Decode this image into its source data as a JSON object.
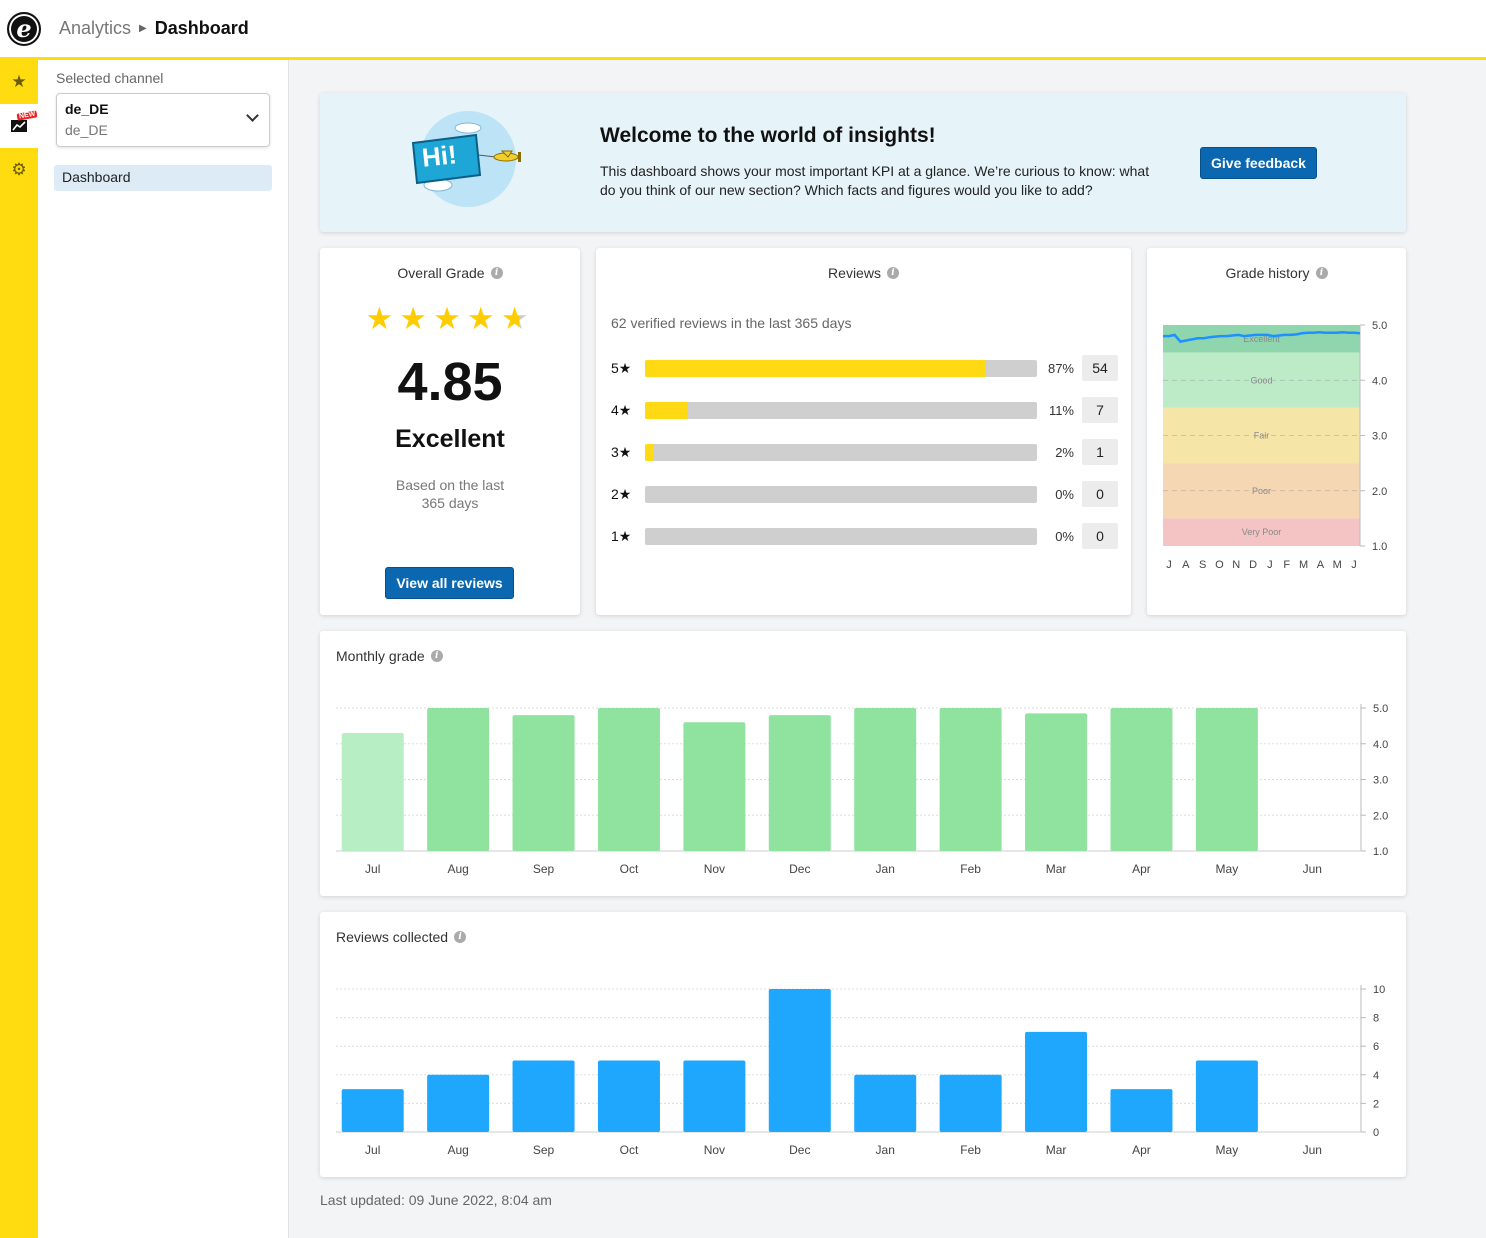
{
  "header": {
    "logo_letter": "e",
    "breadcrumb_parent": "Analytics",
    "breadcrumb_current": "Dashboard"
  },
  "rail": {
    "items": [
      {
        "icon": "star-icon"
      },
      {
        "icon": "chart-new-icon",
        "badge": "NEW"
      },
      {
        "icon": "gear-icon"
      }
    ]
  },
  "sidebar": {
    "selected_channel_label": "Selected channel",
    "channel_value": "de_DE",
    "channel_sub": "de_DE",
    "nav_items": [
      {
        "label": "Dashboard"
      }
    ]
  },
  "banner": {
    "title": "Welcome to the world of insights!",
    "text": "This dashboard shows your most important KPI at a glance. We’re curious to know: what do you think of our new section? Which facts and figures would you like to add?",
    "button": "Give feedback",
    "illustration_text": "Hi!"
  },
  "overall": {
    "title": "Overall Grade",
    "stars": 4.5,
    "grade": "4.85",
    "grade_word": "Excellent",
    "based_line1": "Based on the last",
    "based_line2": "365 days",
    "button": "View all reviews"
  },
  "reviews": {
    "title": "Reviews",
    "subtitle": "62 verified reviews in the last 365 days",
    "distribution": [
      {
        "label": "5★",
        "percent": 87,
        "pct_text": "87%",
        "count": "54"
      },
      {
        "label": "4★",
        "percent": 11,
        "pct_text": "11%",
        "count": "7"
      },
      {
        "label": "3★",
        "percent": 2,
        "pct_text": "2%",
        "count": "1"
      },
      {
        "label": "2★",
        "percent": 0,
        "pct_text": "0%",
        "count": "0"
      },
      {
        "label": "1★",
        "percent": 0,
        "pct_text": "0%",
        "count": "0"
      }
    ]
  },
  "history": {
    "title": "Grade history",
    "bands": [
      {
        "name": "Excellent",
        "from": 4.5,
        "to": 5.0,
        "color": "#8fd6ae"
      },
      {
        "name": "Good",
        "from": 3.5,
        "to": 4.5,
        "color": "#bdebc8"
      },
      {
        "name": "Fair",
        "from": 2.5,
        "to": 3.5,
        "color": "#f5e6a8"
      },
      {
        "name": "Poor",
        "from": 1.5,
        "to": 2.5,
        "color": "#f6d7b4"
      },
      {
        "name": "Very Poor",
        "from": 1.0,
        "to": 1.5,
        "color": "#f4c4c4"
      }
    ],
    "y_ticks": [
      "5.0",
      "4.0",
      "3.0",
      "2.0",
      "1.0"
    ],
    "months": [
      "J",
      "A",
      "S",
      "O",
      "N",
      "D",
      "J",
      "F",
      "M",
      "A",
      "M",
      "J"
    ],
    "line_color": "#1e90ff",
    "line_values": [
      4.8,
      4.8,
      4.82,
      4.7,
      4.72,
      4.74,
      4.76,
      4.76,
      4.78,
      4.79,
      4.8,
      4.8,
      4.81,
      4.82,
      4.8,
      4.81,
      4.82,
      4.82,
      4.82,
      4.8,
      4.81,
      4.82,
      4.82,
      4.83,
      4.85,
      4.86,
      4.86,
      4.87,
      4.86,
      4.86,
      4.86,
      4.87,
      4.86,
      4.86,
      4.85
    ]
  },
  "chart_data": [
    {
      "type": "bar",
      "title": "Monthly grade",
      "categories": [
        "Jul",
        "Aug",
        "Sep",
        "Oct",
        "Nov",
        "Dec",
        "Jan",
        "Feb",
        "Mar",
        "Apr",
        "May",
        "Jun"
      ],
      "values": [
        4.3,
        5.0,
        4.8,
        5.0,
        4.6,
        4.8,
        5.0,
        5.0,
        4.85,
        5.0,
        5.0,
        null
      ],
      "ylim": [
        1.0,
        5.0
      ],
      "y_ticks": [
        "5.0",
        "4.0",
        "3.0",
        "2.0",
        "1.0"
      ],
      "colors": [
        "#b7eec4",
        "#90e39f"
      ],
      "grid": true
    },
    {
      "type": "bar",
      "title": "Reviews collected",
      "categories": [
        "Jul",
        "Aug",
        "Sep",
        "Oct",
        "Nov",
        "Dec",
        "Jan",
        "Feb",
        "Mar",
        "Apr",
        "May",
        "Jun"
      ],
      "values": [
        3,
        4,
        5,
        5,
        5,
        10,
        4,
        4,
        7,
        3,
        5,
        0
      ],
      "ylim": [
        0,
        10
      ],
      "y_ticks": [
        "10",
        "8",
        "6",
        "4",
        "2",
        "0"
      ],
      "colors": [
        "#1ea7fd"
      ],
      "grid": true
    }
  ],
  "footer": {
    "last_updated": "Last updated: 09 June 2022, 8:04 am"
  }
}
